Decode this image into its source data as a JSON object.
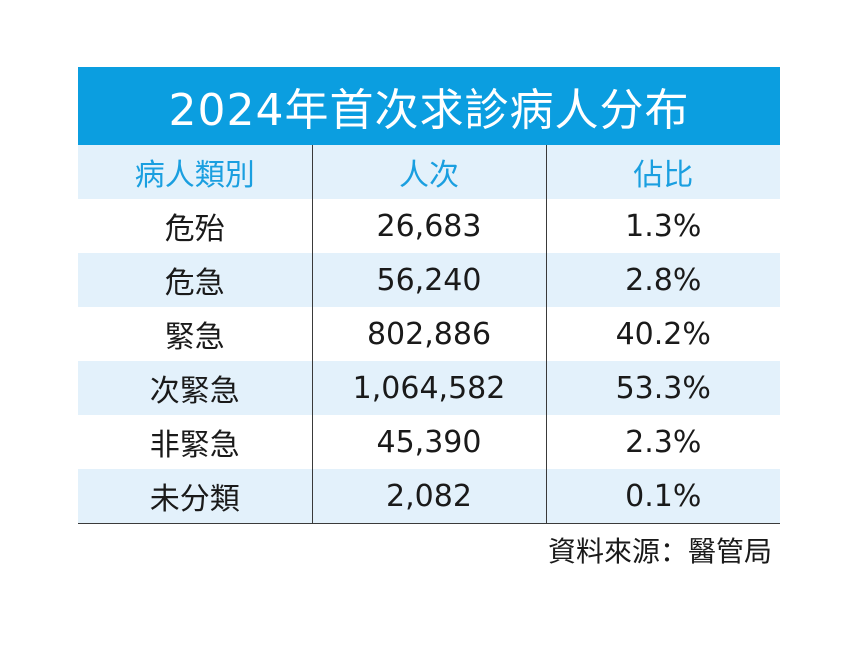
{
  "table": {
    "title": "2024年首次求診病人分布",
    "headers": [
      "病人類別",
      "人次",
      "佔比"
    ],
    "rows": [
      [
        "危殆",
        "26,683",
        "1.3%"
      ],
      [
        "危急",
        "56,240",
        "2.8%"
      ],
      [
        "緊急",
        "802,886",
        "40.2%"
      ],
      [
        "次緊急",
        "1,064,582",
        "53.3%"
      ],
      [
        "非緊急",
        "45,390",
        "2.3%"
      ],
      [
        "未分類",
        "2,082",
        "0.1%"
      ]
    ]
  },
  "source": "資料來源：醫管局",
  "colors": {
    "title_bg": "#0b9ee0",
    "header_text": "#1a9fe0",
    "stripe_bg": "#e3f1fb"
  }
}
